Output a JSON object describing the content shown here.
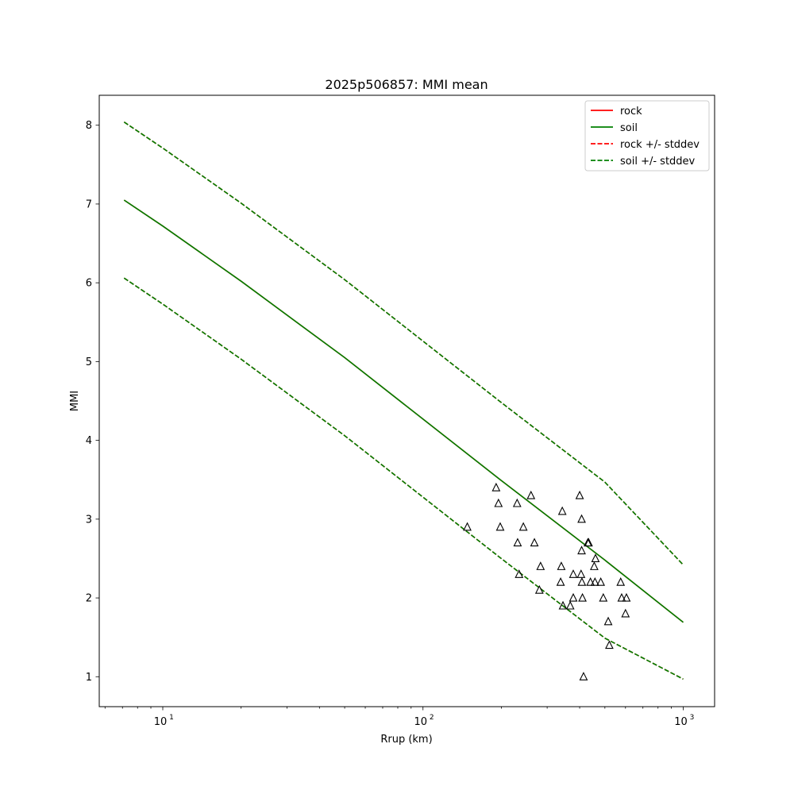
{
  "chart_data": {
    "type": "line",
    "title": "2025p506857: MMI mean",
    "xlabel": "Rrup (km)",
    "ylabel": "MMI",
    "xscale": "log",
    "xlim": [
      5.7,
      1320
    ],
    "ylim": [
      0.62,
      8.38
    ],
    "xticks": [
      {
        "value": 10,
        "base": "10",
        "exp": "1"
      },
      {
        "value": 100,
        "base": "10",
        "exp": "2"
      },
      {
        "value": 1000,
        "base": "10",
        "exp": "3"
      }
    ],
    "yticks": [
      1,
      2,
      3,
      4,
      5,
      6,
      7,
      8
    ],
    "grid": false,
    "legend_position": "top-right",
    "series": [
      {
        "name": "rock",
        "color": "#ff0000",
        "style": "solid",
        "x": [
          7.1,
          10,
          20,
          50,
          100,
          200,
          500,
          1000
        ],
        "y": [
          7.05,
          6.72,
          6.02,
          5.05,
          4.27,
          3.49,
          2.48,
          1.69
        ]
      },
      {
        "name": "soil",
        "color": "#008000",
        "style": "solid",
        "x": [
          7.1,
          10,
          20,
          50,
          100,
          200,
          500,
          1000
        ],
        "y": [
          7.05,
          6.72,
          6.02,
          5.05,
          4.27,
          3.49,
          2.48,
          1.69
        ]
      },
      {
        "name": "rock +/- stddev",
        "color": "#ff0000",
        "style": "dashed",
        "x": [
          7.1,
          10,
          20,
          50,
          100,
          200,
          500,
          1000
        ],
        "y_upper": [
          8.04,
          7.71,
          7.01,
          6.04,
          5.26,
          4.48,
          3.47,
          2.42
        ],
        "y_lower": [
          6.06,
          5.73,
          5.03,
          4.06,
          3.28,
          2.5,
          1.49,
          0.97
        ]
      },
      {
        "name": "soil +/- stddev",
        "color": "#008000",
        "style": "dashed",
        "x": [
          7.1,
          10,
          20,
          50,
          100,
          200,
          500,
          1000
        ],
        "y_upper": [
          8.04,
          7.71,
          7.01,
          6.04,
          5.26,
          4.48,
          3.47,
          2.42
        ],
        "y_lower": [
          6.06,
          5.73,
          5.03,
          4.06,
          3.28,
          2.5,
          1.49,
          0.97
        ]
      }
    ],
    "observations": {
      "marker": "triangle",
      "color": "#000000",
      "points": [
        [
          148,
          2.9
        ],
        [
          191,
          3.4
        ],
        [
          195,
          3.2
        ],
        [
          198,
          2.9
        ],
        [
          230,
          3.2
        ],
        [
          231,
          2.7
        ],
        [
          234,
          2.3
        ],
        [
          243,
          2.9
        ],
        [
          260,
          3.3
        ],
        [
          268,
          2.7
        ],
        [
          283,
          2.4
        ],
        [
          280,
          2.1
        ],
        [
          338,
          2.2
        ],
        [
          340,
          2.4
        ],
        [
          343,
          3.1
        ],
        [
          345,
          1.9
        ],
        [
          368,
          1.9
        ],
        [
          378,
          2.0
        ],
        [
          378,
          2.3
        ],
        [
          400,
          3.3
        ],
        [
          405,
          2.3
        ],
        [
          407,
          2.6
        ],
        [
          407,
          3.0
        ],
        [
          408,
          2.2
        ],
        [
          410,
          2.0
        ],
        [
          414,
          1.0
        ],
        [
          430,
          2.7
        ],
        [
          433,
          2.7
        ],
        [
          440,
          2.2
        ],
        [
          455,
          2.4
        ],
        [
          460,
          2.5
        ],
        [
          458,
          2.2
        ],
        [
          482,
          2.2
        ],
        [
          493,
          2.0
        ],
        [
          515,
          1.7
        ],
        [
          520,
          1.4
        ],
        [
          575,
          2.2
        ],
        [
          580,
          2.0
        ],
        [
          600,
          1.8
        ],
        [
          605,
          2.0
        ]
      ]
    }
  }
}
